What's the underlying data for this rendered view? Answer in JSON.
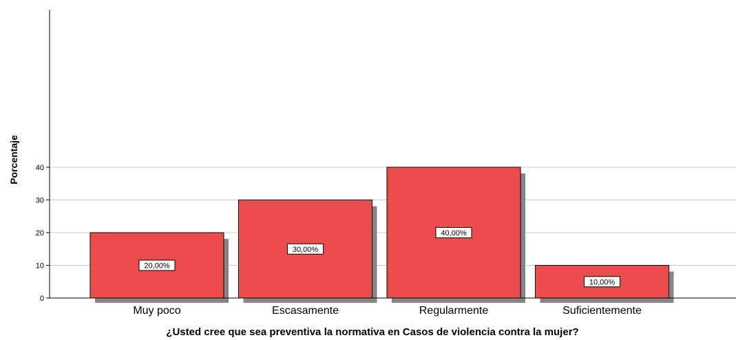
{
  "chart_data": {
    "type": "bar",
    "categories": [
      "Muy poco",
      "Escasamente",
      "Regularmente",
      "Suficientemente"
    ],
    "values": [
      20,
      30,
      40,
      10
    ],
    "data_labels": [
      "20,00%",
      "30,00%",
      "40,00%",
      "10,00%"
    ],
    "title": "",
    "xlabel": "¿Usted cree que sea preventiva la normativa en Casos de violencia contra la mujer?",
    "ylabel": "Porcentaje",
    "ylim": [
      0,
      44
    ],
    "yticks": [
      0,
      10,
      20,
      30,
      40
    ],
    "grid": true,
    "bar_color": "#ec4c4c",
    "bar_shadow": true
  }
}
